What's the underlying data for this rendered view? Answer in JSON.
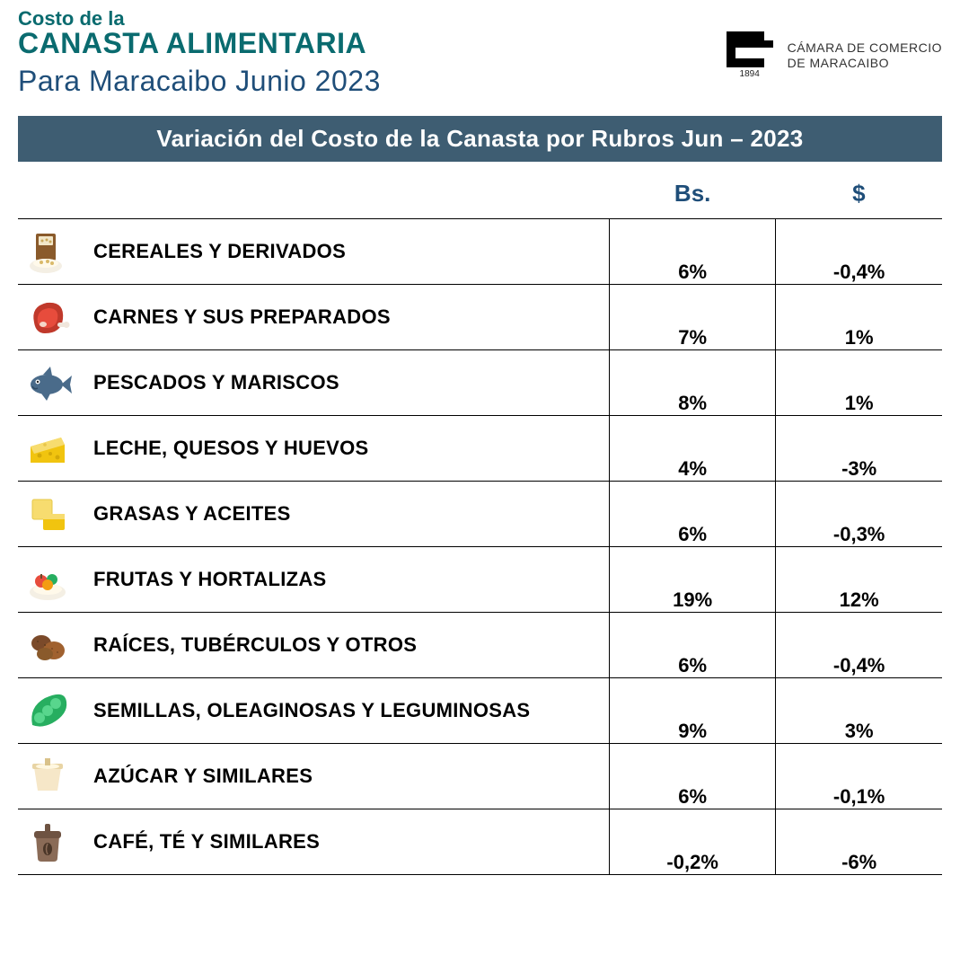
{
  "header": {
    "title_top": "Costo de la",
    "title_main": "CANASTA ALIMENTARIA",
    "subtitle": "Para Maracaibo Junio 2023",
    "logo_year": "1894",
    "logo_text_line1": "CÁMARA DE COMERCIO",
    "logo_text_line2": "DE MARACAIBO"
  },
  "banner": "Variación del Costo de la Canasta por Rubros Jun – 2023",
  "table": {
    "col_bs": "Bs.",
    "col_usd": "$",
    "rows": [
      {
        "icon": "cereal",
        "label": "CEREALES Y DERIVADOS",
        "bs": "6%",
        "usd": "-0,4%"
      },
      {
        "icon": "meat",
        "label": "CARNES Y SUS PREPARADOS",
        "bs": "7%",
        "usd": "1%"
      },
      {
        "icon": "fish",
        "label": "PESCADOS Y MARISCOS",
        "bs": "8%",
        "usd": "1%"
      },
      {
        "icon": "cheese",
        "label": "LECHE, QUESOS Y HUEVOS",
        "bs": "4%",
        "usd": "-3%"
      },
      {
        "icon": "butter",
        "label": "GRASAS Y ACEITES",
        "bs": "6%",
        "usd": "-0,3%"
      },
      {
        "icon": "fruit",
        "label": "FRUTAS Y HORTALIZAS",
        "bs": "19%",
        "usd": "12%"
      },
      {
        "icon": "roots",
        "label": "RAÍCES, TUBÉRCULOS Y OTROS",
        "bs": "6%",
        "usd": "-0,4%"
      },
      {
        "icon": "peas",
        "label": "SEMILLAS, OLEAGINOSAS Y LEGUMINOSAS",
        "bs": "9%",
        "usd": "3%"
      },
      {
        "icon": "sugar",
        "label": "AZÚCAR Y SIMILARES",
        "bs": "6%",
        "usd": "-0,1%"
      },
      {
        "icon": "coffee",
        "label": "CAFÉ, TÉ Y SIMILARES",
        "bs": "-0,2%",
        "usd": "-6%"
      }
    ]
  },
  "colors": {
    "teal": "#0a6b6f",
    "blue": "#1f4e79",
    "banner_bg": "#3e5d72",
    "text": "#000000"
  }
}
